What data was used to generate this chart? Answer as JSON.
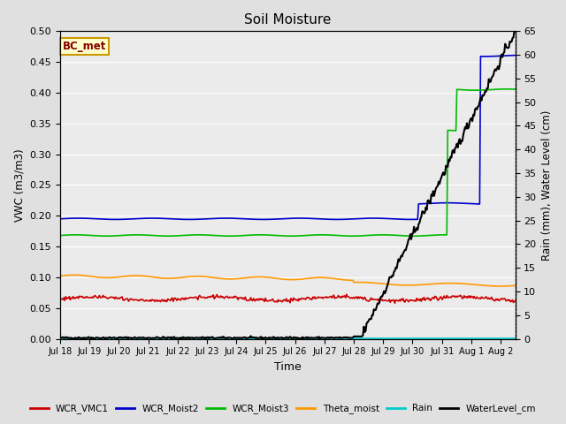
{
  "title": "Soil Moisture",
  "xlabel": "Time",
  "ylabel_left": "VWC (m3/m3)",
  "ylabel_right": "Rain (mm), Water Level (cm)",
  "annotation": "BC_met",
  "ylim_left": [
    0.0,
    0.5
  ],
  "ylim_right": [
    0,
    65
  ],
  "yticks_left": [
    0.0,
    0.05,
    0.1,
    0.15,
    0.2,
    0.25,
    0.3,
    0.35,
    0.4,
    0.45,
    0.5
  ],
  "yticks_right": [
    0,
    5,
    10,
    15,
    20,
    25,
    30,
    35,
    40,
    45,
    50,
    55,
    60,
    65
  ],
  "background_color": "#e0e0e0",
  "plot_bg_color": "#ebebeb",
  "lines": {
    "WCR_VMC1": {
      "color": "#cc0000",
      "lw": 1.2
    },
    "WCR_Moist2": {
      "color": "#0000cc",
      "lw": 1.2
    },
    "WCR_Moist3": {
      "color": "#00bb00",
      "lw": 1.2
    },
    "Theta_moist": {
      "color": "#ff9900",
      "lw": 1.2
    },
    "Rain": {
      "color": "#00cccc",
      "lw": 1.2
    },
    "WaterLevel_cm": {
      "color": "#000000",
      "lw": 1.5
    }
  },
  "tick_positions": [
    0,
    1,
    2,
    3,
    4,
    5,
    6,
    7,
    8,
    9,
    10,
    11,
    12,
    13,
    14,
    15
  ],
  "tick_labels": [
    "Jul 18",
    "Jul 19",
    "Jul 20",
    "Jul 21",
    "Jul 22",
    "Jul 23",
    "Jul 24",
    "Jul 25",
    "Jul 26",
    "Jul 27",
    "Jul 28",
    "Jul 29",
    "Jul 30",
    "Jul 31",
    "Aug 1",
    "Aug 2"
  ],
  "xlim": [
    0,
    15.5
  ]
}
